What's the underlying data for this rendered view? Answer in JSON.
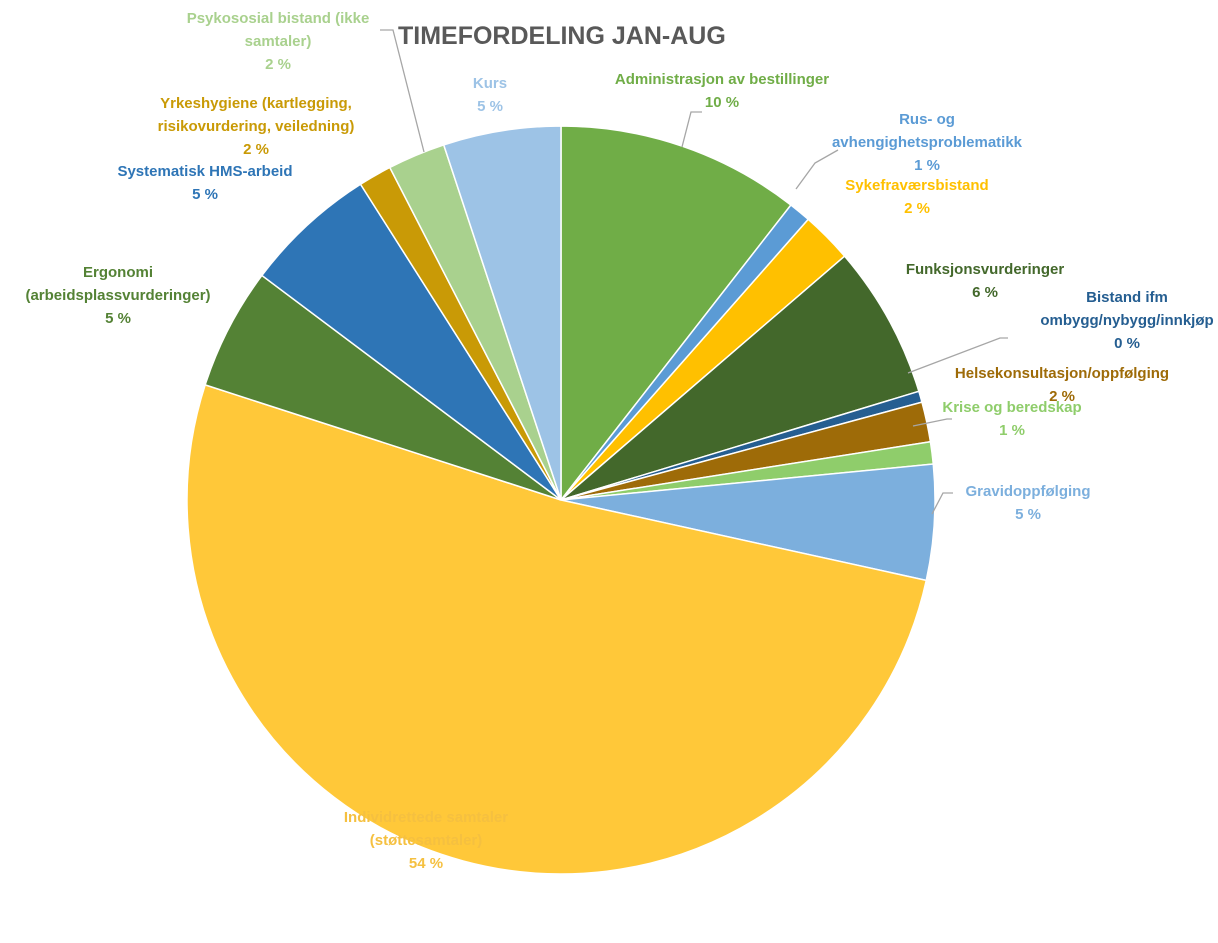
{
  "chart_data": {
    "type": "pie",
    "title": "TIMEFORDELING JAN-AUG",
    "slices": [
      {
        "name": "Administrasjon av bestillinger",
        "lines": [
          "Administrasjon av bestillinger"
        ],
        "value": 10,
        "label": "10 %",
        "color": "#70ad47",
        "label_color": "#70ad47"
      },
      {
        "name": "Rus- og avhengighetsproblematikk",
        "lines": [
          "Rus- og",
          "avhengighetsproblematikk"
        ],
        "value": 1,
        "label": "1 %",
        "color": "#5b9bd5",
        "label_color": "#5b9bd5"
      },
      {
        "name": "Sykefraværsbistand",
        "lines": [
          "Sykefraværsbistand"
        ],
        "value": 2,
        "label": "2 %",
        "color": "#ffc000",
        "label_color": "#ffc000"
      },
      {
        "name": "Funksjonsvurderinger",
        "lines": [
          "Funksjonsvurderinger"
        ],
        "value": 6,
        "label": "6 %",
        "color": "#43682b",
        "label_color": "#43682b"
      },
      {
        "name": "Bistand ifm ombygg/nybygg/innkjøp",
        "lines": [
          "Bistand ifm",
          "ombygg/nybygg/innkjøp"
        ],
        "value": 0,
        "label": "0 %",
        "color": "#255e91",
        "label_color": "#255e91"
      },
      {
        "name": "Helsekonsultasjon/oppfølging",
        "lines": [
          "Helsekonsultasjon/oppfølging"
        ],
        "value": 2,
        "label": "2 %",
        "color": "#9e6b08",
        "label_color": "#9e6b08"
      },
      {
        "name": "Krise og beredskap",
        "lines": [
          "Krise og beredskap"
        ],
        "value": 1,
        "label": "1 %",
        "color": "#8fcd6b",
        "label_color": "#8fcd6b"
      },
      {
        "name": "Gravidoppfølging",
        "lines": [
          "Gravidoppfølging"
        ],
        "value": 5,
        "label": "5 %",
        "color": "#7cafdd",
        "label_color": "#7cafdd"
      },
      {
        "name": "Individrettede samtaler (støttesamtaler)",
        "lines": [
          "Individrettede samtaler",
          "(støttesamtaler)"
        ],
        "value": 54,
        "label": "54 %",
        "color": "#ffc839",
        "label_color": "#f5c040"
      },
      {
        "name": "Ergonomi (arbeidsplassvurderinger)",
        "lines": [
          "Ergonomi",
          "(arbeidsplassvurderinger)"
        ],
        "value": 5,
        "label": "5 %",
        "color": "#548235",
        "label_color": "#548235"
      },
      {
        "name": "Systematisk HMS-arbeid",
        "lines": [
          "Systematisk HMS-arbeid"
        ],
        "value": 5,
        "label": "5 %",
        "color": "#2e75b6",
        "label_color": "#2e75b6"
      },
      {
        "name": "Yrkeshygiene (kartlegging, risikovurdering, veiledning)",
        "lines": [
          "Yrkeshygiene (kartlegging,",
          "risikovurdering, veiledning)"
        ],
        "value": 2,
        "label": "2 %",
        "color": "#c99a06",
        "label_color": "#c99a06"
      },
      {
        "name": "Psykososial bistand (ikke samtaler)",
        "lines": [
          "Psykososial bistand (ikke",
          "samtaler)"
        ],
        "value": 2,
        "label": "2 %",
        "color": "#a9d18e",
        "label_color": "#a9d18e"
      },
      {
        "name": "Kurs",
        "lines": [
          "Kurs"
        ],
        "value": 5,
        "label": "5 %",
        "color": "#9dc3e6",
        "label_color": "#9dc3e6"
      }
    ],
    "legend": "none"
  }
}
